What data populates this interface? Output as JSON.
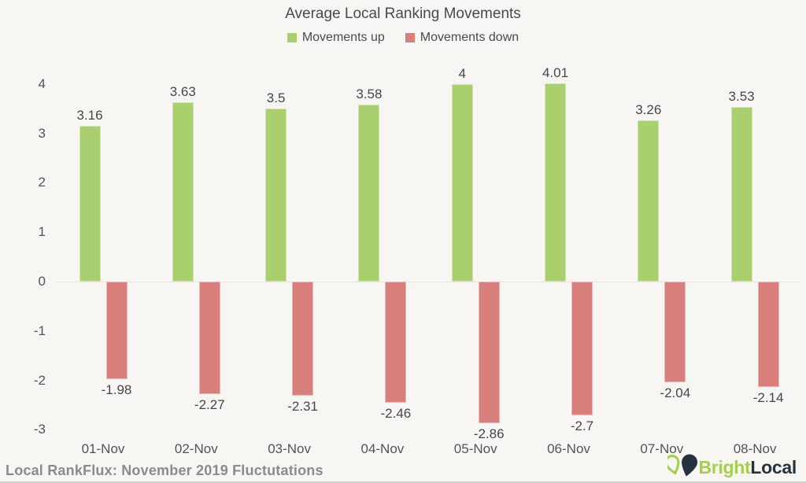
{
  "chart_data": {
    "type": "bar",
    "title": "Average Local Ranking Movements",
    "categories": [
      "01-Nov",
      "02-Nov",
      "03-Nov",
      "04-Nov",
      "05-Nov",
      "06-Nov",
      "07-Nov",
      "08-Nov"
    ],
    "series": [
      {
        "name": "Movements up",
        "color": "#a9cf6e",
        "values": [
          3.16,
          3.63,
          3.5,
          3.58,
          4,
          4.01,
          3.26,
          3.53
        ],
        "labels": [
          "3.16",
          "3.63",
          "3.5",
          "3.58",
          "4",
          "4.01",
          "3.26",
          "3.53"
        ]
      },
      {
        "name": "Movements down",
        "color": "#d97f7b",
        "values": [
          -1.98,
          -2.27,
          -2.31,
          -2.46,
          -2.86,
          -2.7,
          -2.04,
          -2.14
        ],
        "labels": [
          "-1.98",
          "-2.27",
          "-2.31",
          "-2.46",
          "-2.86",
          "-2.7",
          "-2.04",
          "-2.14"
        ]
      }
    ],
    "yticks": [
      4,
      3,
      2,
      1,
      0,
      -1,
      -2,
      -3
    ],
    "ylim": [
      -3.3,
      4.3
    ],
    "xlabel": "",
    "ylabel": "",
    "grid": false,
    "legend_position": "top"
  },
  "footer": {
    "source_text": "Local RankFlux: November 2019 Fluctutations",
    "logo": {
      "icon": "map-pins-icon",
      "brand_first": "Bright",
      "brand_second": "Local",
      "brand_green": "#a3ce4e",
      "brand_dark": "#26323f"
    }
  },
  "colors": {
    "background": "#f7f6f3",
    "axis_text": "#545454",
    "value_text": "#464646",
    "zero_line": "#e7e6e1",
    "footer_text": "#8b8b89",
    "bottom_border": "#cfcecb"
  }
}
